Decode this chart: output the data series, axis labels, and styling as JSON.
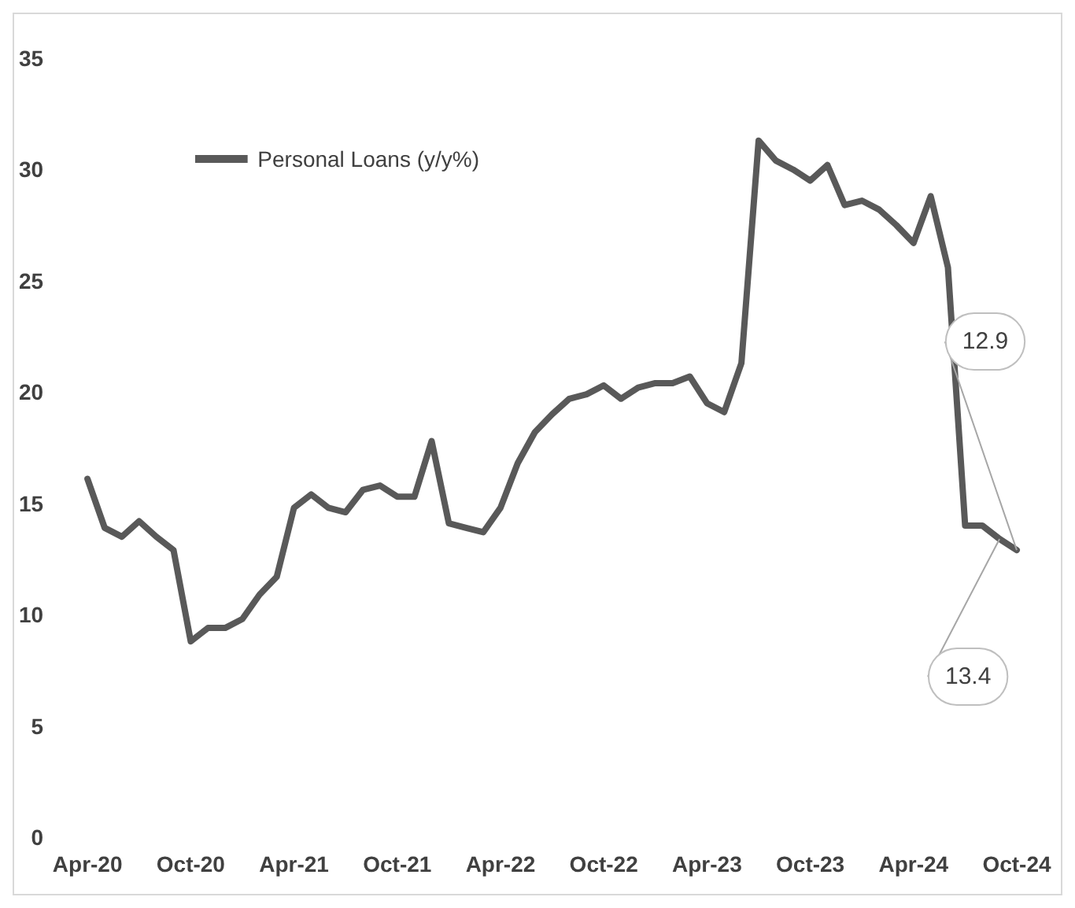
{
  "chart_data": {
    "type": "line",
    "categories": [
      "Apr-20",
      null,
      null,
      null,
      null,
      null,
      "Oct-20",
      null,
      null,
      null,
      null,
      null,
      "Apr-21",
      null,
      null,
      null,
      null,
      null,
      "Oct-21",
      null,
      null,
      null,
      null,
      null,
      "Apr-22",
      null,
      null,
      null,
      null,
      null,
      "Oct-22",
      null,
      null,
      null,
      null,
      null,
      "Apr-23",
      null,
      null,
      null,
      null,
      null,
      "Oct-23",
      null,
      null,
      null,
      null,
      null,
      "Apr-24",
      null,
      null,
      null,
      null,
      null,
      "Oct-24"
    ],
    "series": [
      {
        "name": "Personal Loans (y/y%)",
        "color": "#595959",
        "values": [
          16.1,
          13.9,
          13.5,
          14.2,
          13.5,
          12.9,
          8.8,
          9.4,
          9.4,
          9.8,
          10.9,
          11.7,
          14.8,
          15.4,
          14.8,
          14.6,
          15.6,
          15.8,
          15.3,
          15.3,
          17.8,
          14.1,
          13.9,
          13.7,
          14.8,
          16.8,
          18.2,
          19.0,
          19.7,
          19.9,
          20.3,
          19.7,
          20.2,
          20.4,
          20.4,
          20.7,
          19.5,
          19.1,
          21.3,
          31.3,
          30.4,
          30.0,
          29.5,
          30.2,
          28.4,
          28.6,
          28.2,
          27.5,
          26.7,
          28.8,
          25.6,
          14.0,
          14.0,
          13.4,
          12.9
        ],
        "value_labels": [
          null,
          null,
          null,
          null,
          null,
          null,
          null,
          null,
          null,
          null,
          null,
          null,
          null,
          null,
          null,
          null,
          null,
          null,
          null,
          null,
          null,
          null,
          null,
          null,
          null,
          null,
          null,
          null,
          null,
          null,
          null,
          null,
          null,
          null,
          null,
          null,
          null,
          null,
          null,
          null,
          null,
          null,
          null,
          null,
          null,
          null,
          null,
          null,
          null,
          null,
          null,
          null,
          null,
          "13.4",
          "12.9"
        ]
      }
    ],
    "ylim": [
      0,
      35
    ],
    "yticks": [
      0,
      5,
      10,
      15,
      20,
      25,
      30,
      35
    ],
    "grid": false,
    "legend": "top left",
    "marker": "none",
    "line_style": "solid"
  }
}
